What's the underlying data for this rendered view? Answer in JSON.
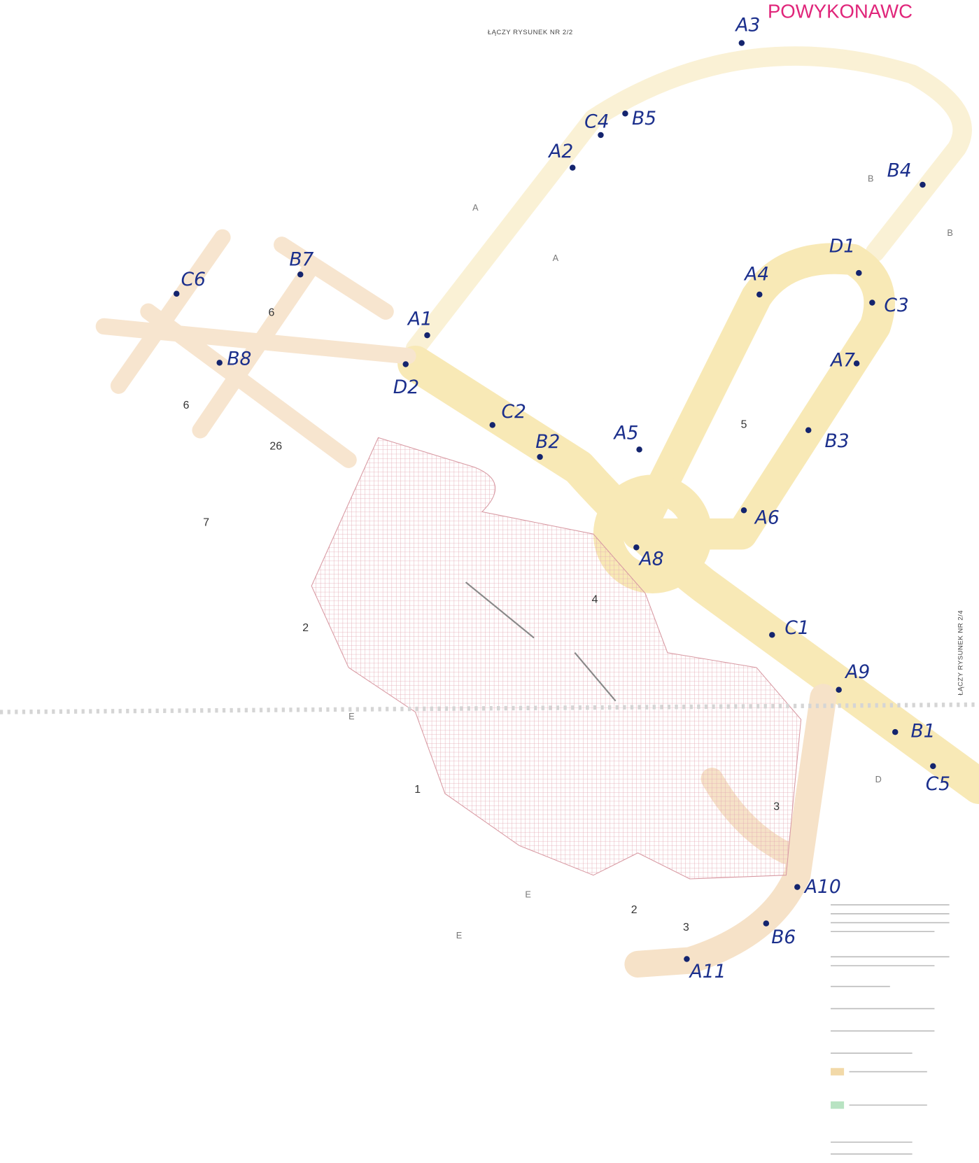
{
  "title": "POWYKONAWC",
  "sheet_refs": [
    "ŁĄCZY RYSUNEK NR 2/2",
    "ŁĄCZY RYSUNEK NR 2/4"
  ],
  "points": [
    "A1",
    "A2",
    "A3",
    "A4",
    "A5",
    "A6",
    "A7",
    "A8",
    "A9",
    "A10",
    "A11",
    "B1",
    "B2",
    "B3",
    "B4",
    "B5",
    "B6",
    "B7",
    "B8",
    "C1",
    "C2",
    "C3",
    "C4",
    "C5",
    "C6",
    "D1",
    "D2"
  ],
  "area_numbers": [
    "6",
    "6",
    "26",
    "7",
    "5",
    "4",
    "2",
    "1",
    "3",
    "2",
    "3"
  ],
  "zone_letters": [
    "A",
    "A",
    "B",
    "B",
    "D",
    "E",
    "E",
    "E"
  ]
}
